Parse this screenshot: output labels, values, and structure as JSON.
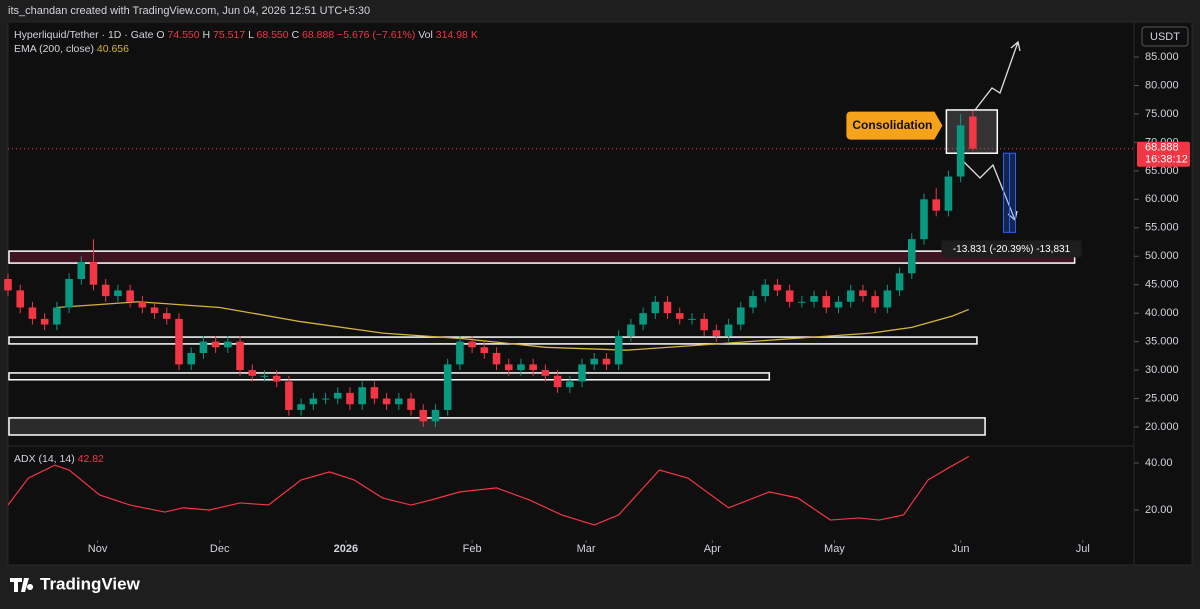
{
  "header": {
    "credit": "its_chandan created with TradingView.com, Jun 04, 2026 12:51 UTC+5:30",
    "logo": "TradingView",
    "currency": "USDT"
  },
  "chart_data": [
    {
      "type": "candlestick",
      "legend": {
        "symbol": "Hyperliquid/Tether · 1D · Gate",
        "fields": [
          [
            "O",
            "74.550"
          ],
          [
            "H",
            "75.517"
          ],
          [
            "L",
            "68.550"
          ],
          [
            "C",
            "68.888"
          ]
        ],
        "change": "−5.676 (−7.61%)",
        "volume_label": "Vol",
        "volume": "314.98 K"
      },
      "x": [
        -22,
        -19,
        -16,
        -13,
        -10,
        -7,
        -4,
        -1,
        2,
        5,
        8,
        11,
        14,
        17,
        20,
        23,
        26,
        29,
        32,
        35,
        38,
        41,
        44,
        47,
        50,
        53,
        56,
        59,
        62,
        65,
        68,
        71,
        74,
        77,
        80,
        83,
        86,
        89,
        92,
        95,
        98,
        101,
        104,
        107,
        110,
        113,
        116,
        119,
        122,
        125,
        128,
        131,
        134,
        137,
        140,
        143,
        146,
        149,
        152,
        155,
        158,
        161,
        164,
        167,
        170,
        173,
        176,
        179,
        182,
        185,
        188,
        191,
        194,
        197,
        200,
        203,
        206,
        209,
        212,
        215
      ],
      "open": [
        46,
        44,
        41,
        39,
        38,
        41,
        46,
        49,
        45,
        43,
        44,
        42,
        41,
        40,
        39,
        31,
        33,
        35,
        34,
        35,
        30,
        29,
        29,
        28,
        23,
        24,
        25,
        25,
        26,
        24,
        27,
        25,
        24,
        25,
        23,
        21,
        23,
        31,
        35,
        34,
        33,
        31,
        30,
        31,
        30,
        29,
        27,
        28,
        31,
        32,
        31,
        36,
        38,
        40,
        42,
        40,
        39,
        39,
        37,
        36,
        38,
        41,
        43,
        45,
        44,
        42,
        42,
        43,
        41,
        42,
        44,
        43,
        41,
        44,
        47,
        53,
        60,
        58,
        64,
        74.55
      ],
      "high": [
        47,
        45,
        42,
        40,
        42,
        47,
        50,
        53,
        46,
        45,
        45,
        43,
        42,
        41,
        40,
        34,
        36,
        36,
        36,
        36,
        31,
        30,
        30,
        29,
        25,
        26,
        26,
        27,
        27,
        28,
        28,
        26,
        26,
        26,
        24,
        24,
        32,
        36,
        36,
        35,
        34,
        32,
        32,
        32,
        31,
        30,
        29,
        32,
        33,
        33,
        37,
        39,
        41,
        43,
        43,
        41,
        40,
        40,
        38,
        39,
        42,
        44,
        46,
        46,
        45,
        43,
        44,
        44,
        43,
        45,
        45,
        44,
        45,
        48,
        54,
        61,
        62,
        65,
        75,
        75.517
      ],
      "low": [
        43,
        40,
        38,
        37,
        37,
        40,
        45,
        44,
        42,
        42,
        41,
        40,
        39,
        38,
        30,
        30,
        32,
        33,
        33,
        29,
        28,
        28,
        27,
        22,
        22,
        23,
        24,
        24,
        23,
        23,
        24,
        23,
        23,
        22,
        20,
        20,
        22,
        30,
        33,
        32,
        30,
        29,
        29,
        29,
        28,
        26,
        26,
        27,
        30,
        30,
        30,
        35,
        37,
        39,
        39,
        38,
        38,
        36,
        35,
        35,
        37,
        40,
        42,
        43,
        41,
        41,
        41,
        40,
        40,
        41,
        42,
        40,
        40,
        43,
        46,
        52,
        57,
        57,
        63,
        68.55
      ],
      "close": [
        44,
        41,
        39,
        38,
        41,
        46,
        49,
        45,
        43,
        44,
        42,
        41,
        40,
        39,
        31,
        33,
        35,
        34,
        35,
        30,
        29,
        29,
        28,
        23,
        24,
        25,
        25,
        26,
        24,
        27,
        25,
        24,
        25,
        23,
        21,
        23,
        31,
        35,
        34,
        33,
        31,
        30,
        31,
        30,
        29,
        27,
        28,
        31,
        32,
        31,
        36,
        38,
        40,
        42,
        40,
        39,
        39,
        37,
        36,
        38,
        41,
        43,
        45,
        44,
        42,
        42,
        43,
        41,
        42,
        44,
        43,
        41,
        44,
        47,
        53,
        60,
        58,
        64,
        73,
        68.888
      ],
      "up_color": "#089981",
      "down_color": "#f23645",
      "series": [
        {
          "name": "EMA (200, close)",
          "color": "#d4b43c",
          "last_label": "40.656",
          "x": [
            -10,
            10,
            30,
            50,
            70,
            90,
            110,
            130,
            150,
            170,
            190,
            200,
            210,
            214
          ],
          "values": [
            41,
            42,
            41,
            38.5,
            36.5,
            35.5,
            34,
            33.5,
            34.5,
            35.5,
            36.5,
            37.5,
            39.5,
            40.656
          ]
        }
      ],
      "zones": [
        {
          "from": 48.8,
          "to": 50.9,
          "end": 240,
          "color": "#3d1420"
        },
        {
          "from": 34.6,
          "to": 35.8,
          "end": 216,
          "color": "#161616"
        },
        {
          "from": 28.3,
          "to": 29.5,
          "end": 165,
          "color": "#161616"
        },
        {
          "from": 18.6,
          "to": 21.6,
          "end": 218,
          "color": "#2b2b2b"
        }
      ],
      "consolidation": {
        "label": "Consolidation",
        "from": 68.1,
        "to": 75.7,
        "start": 208.5,
        "end": 221
      },
      "measure": {
        "from": 68.1,
        "to": 54.2,
        "at": 224,
        "label": "-13.831 (-20.39%) -13,831"
      },
      "last_label": "68.888",
      "countdown": "16:38:12",
      "xlim": [
        -22,
        253.6
      ],
      "ylim": [
        16.84,
        90.8
      ],
      "yticks": [
        {
          "value": 20,
          "label": "20.000"
        },
        {
          "value": 25,
          "label": "25.000"
        },
        {
          "value": 30,
          "label": "30.000"
        },
        {
          "value": 35,
          "label": "35.000"
        },
        {
          "value": 40,
          "label": "40.000"
        },
        {
          "value": 45,
          "label": "45.000"
        },
        {
          "value": 50,
          "label": "50.000"
        },
        {
          "value": 55,
          "label": "55.000"
        },
        {
          "value": 60,
          "label": "60.000"
        },
        {
          "value": 65,
          "label": "65.000"
        },
        {
          "value": 70,
          "label": "70.000"
        },
        {
          "value": 75,
          "label": "75.000"
        },
        {
          "value": 80,
          "label": "80.000"
        },
        {
          "value": 85,
          "label": "85.000"
        }
      ]
    },
    {
      "type": "line",
      "series": [
        {
          "name": "ADX (14, 14)",
          "color": "#f23645",
          "last_label": "42.82",
          "x": [
            -22,
            -17,
            -10.5,
            -7,
            0.5,
            8,
            16.5,
            21,
            27.5,
            35,
            42,
            50,
            57,
            63,
            70,
            77,
            82,
            89,
            98,
            106,
            114,
            122,
            128,
            138,
            145,
            155,
            165,
            172,
            180,
            187,
            192,
            198,
            204,
            209,
            214
          ],
          "values": [
            22.1,
            33.6,
            39.1,
            37,
            26.4,
            22.1,
            19.1,
            20.9,
            20,
            23,
            22.1,
            32.8,
            36.2,
            32.8,
            25.1,
            22.1,
            24.3,
            27.7,
            29.4,
            24.3,
            17.9,
            13.6,
            17.9,
            37,
            33.6,
            20.9,
            27.7,
            25.1,
            15.7,
            16.6,
            15.7,
            17.9,
            32.8,
            37.9,
            42.82
          ]
        }
      ],
      "xlim": [
        -22,
        253.6
      ],
      "ylim": [
        7.2,
        46.4
      ],
      "yticks": [
        {
          "value": 20,
          "label": "20.00"
        },
        {
          "value": 40,
          "label": "40.00"
        }
      ],
      "xticks": [
        {
          "value": 0,
          "label": "Nov"
        },
        {
          "value": 30,
          "label": "Dec"
        },
        {
          "value": 61,
          "label": "2026"
        },
        {
          "value": 92,
          "label": "Feb"
        },
        {
          "value": 120,
          "label": "Mar"
        },
        {
          "value": 151,
          "label": "Apr"
        },
        {
          "value": 181,
          "label": "May"
        },
        {
          "value": 212,
          "label": "Jun"
        },
        {
          "value": 242,
          "label": "Jul"
        }
      ]
    }
  ]
}
